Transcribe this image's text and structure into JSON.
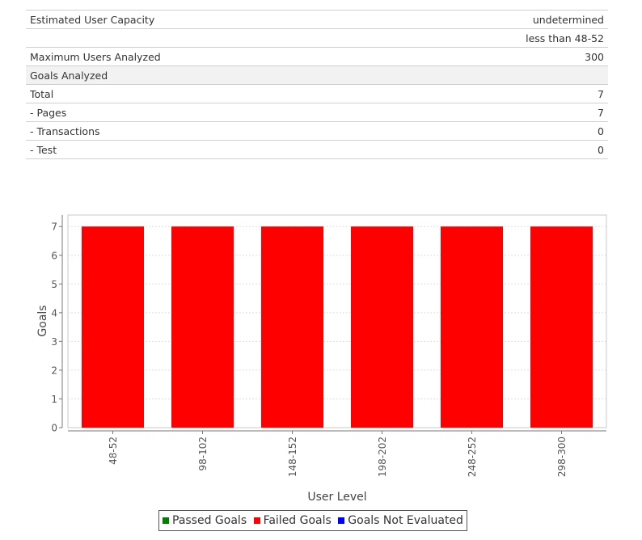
{
  "summary": {
    "rows": [
      {
        "label": "Estimated User Capacity",
        "value": "undetermined"
      },
      {
        "label": "",
        "value": "less than 48-52"
      },
      {
        "label": "Maximum Users Analyzed",
        "value": "300"
      },
      {
        "label": "Goals Analyzed",
        "value": ""
      },
      {
        "label": "Total",
        "value": "7"
      },
      {
        "label": "- Pages",
        "value": "7"
      },
      {
        "label": "- Transactions",
        "value": "0"
      },
      {
        "label": "- Test",
        "value": "0"
      }
    ]
  },
  "chart_data": {
    "type": "bar",
    "xlabel": "User Level",
    "ylabel": "Goals",
    "categories": [
      "48-52",
      "98-102",
      "148-152",
      "198-202",
      "248-252",
      "298-300"
    ],
    "series": [
      {
        "name": "Passed Goals",
        "color": "#008000",
        "values": [
          0,
          0,
          0,
          0,
          0,
          0
        ]
      },
      {
        "name": "Failed Goals",
        "color": "#ff0000",
        "values": [
          7,
          7,
          7,
          7,
          7,
          7
        ]
      },
      {
        "name": "Goals Not Evaluated",
        "color": "#0000ff",
        "values": [
          0,
          0,
          0,
          0,
          0,
          0
        ]
      }
    ],
    "ylim": [
      0,
      7
    ],
    "yticks": [
      0,
      1,
      2,
      3,
      4,
      5,
      6,
      7
    ],
    "grid": true,
    "stacked": true,
    "legend_position": "bottom"
  },
  "legend": {
    "items": [
      {
        "label": "Passed Goals",
        "color": "#008000"
      },
      {
        "label": "Failed Goals",
        "color": "#ff0000"
      },
      {
        "label": "Goals Not Evaluated",
        "color": "#0000ff"
      }
    ]
  }
}
